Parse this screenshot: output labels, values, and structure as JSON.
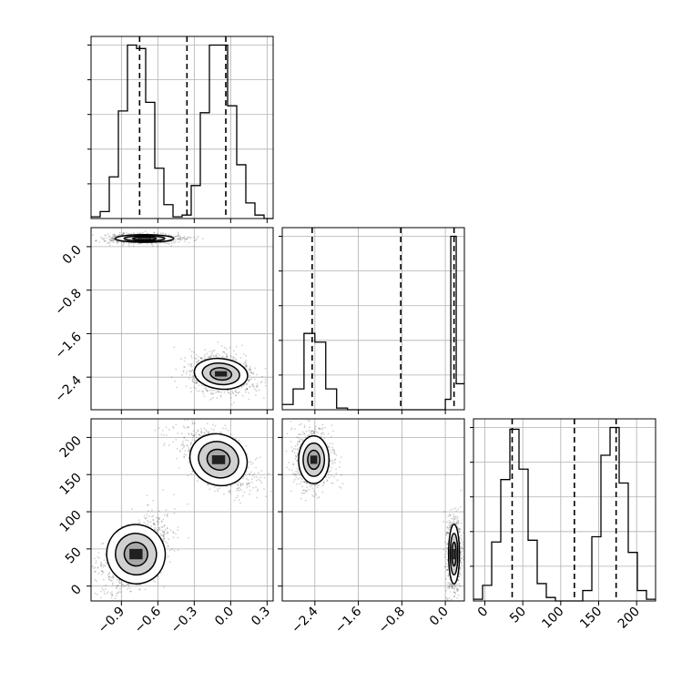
{
  "chart_data": {
    "type": "corner",
    "grid": true,
    "dashed_quantile_lines": {
      "p1": [
        -0.75,
        -0.36,
        -0.04
      ],
      "p2": [
        -2.45,
        -0.82,
        0.16
      ],
      "p3": [
        36,
        118,
        173
      ]
    },
    "panels": [
      {
        "id": "hist-p1",
        "type": "histogram",
        "xlim": [
          -1.15,
          0.35
        ],
        "xtick_values": [
          -0.9,
          -0.6,
          -0.3,
          0.0,
          0.3
        ],
        "bins": [
          [
            -1.15,
            0.01
          ],
          [
            -1.075,
            0.04
          ],
          [
            -1.0,
            0.24
          ],
          [
            -0.925,
            0.62
          ],
          [
            -0.85,
            1.0
          ],
          [
            -0.775,
            0.98
          ],
          [
            -0.7,
            0.67
          ],
          [
            -0.625,
            0.29
          ],
          [
            -0.55,
            0.08
          ],
          [
            -0.475,
            0.01
          ],
          [
            -0.4,
            0.02
          ],
          [
            -0.325,
            0.19
          ],
          [
            -0.25,
            0.61
          ],
          [
            -0.175,
            1.0
          ],
          [
            -0.1,
            1.0
          ],
          [
            -0.025,
            0.65
          ],
          [
            0.05,
            0.31
          ],
          [
            0.125,
            0.09
          ],
          [
            0.2,
            0.02
          ],
          [
            0.275,
            0.0
          ]
        ]
      },
      {
        "id": "hist-p2",
        "type": "histogram",
        "xlim": [
          -3.0,
          0.35
        ],
        "xtick_values": [
          -2.4,
          -1.6,
          -0.8,
          0.0
        ],
        "bins": [
          [
            -3.0,
            0.03
          ],
          [
            -2.8,
            0.12
          ],
          [
            -2.6,
            0.44
          ],
          [
            -2.4,
            0.39
          ],
          [
            -2.2,
            0.12
          ],
          [
            -2.0,
            0.01
          ],
          [
            -1.8,
            0.0
          ],
          [
            -1.6,
            0.0
          ],
          [
            -1.4,
            0.0
          ],
          [
            -1.2,
            0.0
          ],
          [
            -1.0,
            0.0
          ],
          [
            -0.8,
            0.0
          ],
          [
            -0.6,
            0.0
          ],
          [
            -0.4,
            0.0
          ],
          [
            -0.2,
            0.0
          ],
          [
            0.0,
            0.06
          ],
          [
            0.1,
            1.0
          ],
          [
            0.2,
            0.15
          ]
        ]
      },
      {
        "id": "hist-p3",
        "type": "histogram",
        "xlim": [
          -15,
          225
        ],
        "xtick_values": [
          0,
          50,
          100,
          150,
          200
        ],
        "tick_labels": [
          "0",
          "50",
          "100",
          "150",
          "200"
        ],
        "bins": [
          [
            -15,
            0.01
          ],
          [
            -3,
            0.09
          ],
          [
            9,
            0.34
          ],
          [
            21,
            0.7
          ],
          [
            33,
            0.99
          ],
          [
            45,
            0.76
          ],
          [
            57,
            0.35
          ],
          [
            69,
            0.1
          ],
          [
            81,
            0.02
          ],
          [
            93,
            0.0
          ],
          [
            105,
            0.0
          ],
          [
            117,
            0.0
          ],
          [
            129,
            0.06
          ],
          [
            141,
            0.37
          ],
          [
            153,
            0.84
          ],
          [
            165,
            1.0
          ],
          [
            177,
            0.68
          ],
          [
            189,
            0.28
          ],
          [
            201,
            0.06
          ],
          [
            213,
            0.01
          ]
        ]
      },
      {
        "id": "scatter-p1-p2",
        "type": "2d-density",
        "xlim": [
          -1.15,
          0.35
        ],
        "ylim": [
          -3.0,
          0.35
        ],
        "ytick_values": [
          0.0,
          -0.8,
          -1.6,
          -2.4
        ],
        "tick_labels": [
          "0.0",
          "−0.8",
          "−1.6",
          "−2.4"
        ],
        "clusters": [
          {
            "cx": -0.71,
            "cy": 0.15,
            "sx": 0.12,
            "sy": 0.035,
            "rho": 0.0
          },
          {
            "cx": -0.08,
            "cy": -2.34,
            "sx": 0.11,
            "sy": 0.14,
            "rho": -0.2
          }
        ]
      },
      {
        "id": "scatter-p1-p3",
        "type": "2d-density",
        "xlim": [
          -1.15,
          0.35
        ],
        "ylim": [
          -20,
          225
        ],
        "ytick_values": [
          200,
          150,
          100,
          50,
          0
        ],
        "tick_labels": [
          "200",
          "150",
          "100",
          "50",
          "0"
        ],
        "x_tick_labels": [
          "−0.9",
          "−0.6",
          "−0.3",
          "0.0",
          "0.3"
        ],
        "clusters": [
          {
            "cx": -0.78,
            "cy": 43,
            "sx": 0.12,
            "sy": 20,
            "rho": 0.55
          },
          {
            "cx": -0.1,
            "cy": 170,
            "sx": 0.12,
            "sy": 17,
            "rho": -0.55
          }
        ]
      },
      {
        "id": "scatter-p2-p3",
        "type": "2d-density",
        "xlim": [
          -3.0,
          0.35
        ],
        "ylim": [
          -20,
          225
        ],
        "x_tick_labels": [
          "−2.4",
          "−1.6",
          "−0.8",
          "0.0"
        ],
        "clusters": [
          {
            "cx": -2.42,
            "cy": 170,
            "sx": 0.14,
            "sy": 16,
            "rho": 0.0
          },
          {
            "cx": 0.16,
            "cy": 43,
            "sx": 0.05,
            "sy": 20,
            "rho": 0.0
          }
        ]
      }
    ]
  }
}
